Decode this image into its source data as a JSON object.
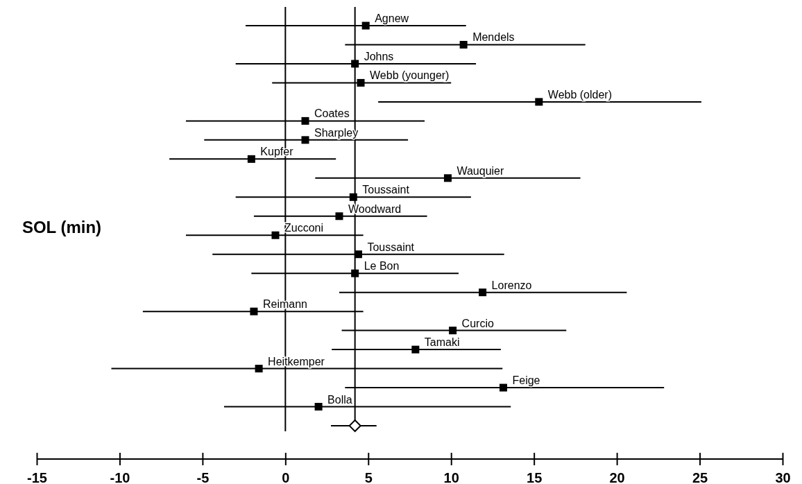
{
  "chart_data": {
    "type": "scatter",
    "orientation": "horizontal",
    "ylabel": "SOL (min)",
    "categories": [
      "Agnew",
      "Mendels",
      "Johns",
      "Webb (younger)",
      "Webb (older)",
      "Coates",
      "Sharpley",
      "Kupfer",
      "Wauquier",
      "Toussaint",
      "Woodward",
      "Zucconi",
      "Toussaint",
      "Le Bon",
      "Lorenzo",
      "Reimann",
      "Curcio",
      "Tamaki",
      "Heitkemper",
      "Feige",
      "Bolla",
      null
    ],
    "series": [
      {
        "type": "scatter",
        "marker": "square",
        "color": "#000000",
        "values": [
          4.85,
          10.75,
          4.2,
          4.55,
          15.3,
          1.2,
          1.2,
          -2.05,
          9.8,
          4.1,
          3.25,
          -0.6,
          4.4,
          4.2,
          11.9,
          -1.9,
          10.1,
          7.85,
          -1.6,
          13.15,
          2.0,
          null
        ],
        "errors": [
          [
            -2.4,
            10.9
          ],
          [
            3.6,
            18.1
          ],
          [
            -3.0,
            11.5
          ],
          [
            -0.8,
            10.0
          ],
          [
            5.6,
            25.1
          ],
          [
            -6.0,
            8.4
          ],
          [
            -4.9,
            7.4
          ],
          [
            -7.0,
            3.05
          ],
          [
            1.8,
            17.8
          ],
          [
            -3.0,
            11.2
          ],
          [
            -1.9,
            8.55
          ],
          [
            -6.0,
            4.7
          ],
          [
            -4.4,
            13.2
          ],
          [
            -2.05,
            10.45
          ],
          [
            3.25,
            20.6
          ],
          [
            -8.6,
            4.7
          ],
          [
            3.4,
            16.95
          ],
          [
            2.8,
            13.0
          ],
          [
            -10.5,
            13.1
          ],
          [
            3.6,
            22.85
          ],
          [
            -3.7,
            13.6
          ],
          null
        ]
      },
      {
        "type": "scatter",
        "marker": "diamond",
        "color": "#000000",
        "values": [
          null,
          null,
          null,
          null,
          null,
          null,
          null,
          null,
          null,
          null,
          null,
          null,
          null,
          null,
          null,
          null,
          null,
          null,
          null,
          null,
          null,
          4.2
        ],
        "errors": [
          null,
          null,
          null,
          null,
          null,
          null,
          null,
          null,
          null,
          null,
          null,
          null,
          null,
          null,
          null,
          null,
          null,
          null,
          null,
          null,
          null,
          [
            2.75,
            5.5
          ]
        ]
      }
    ],
    "xlim": [
      -15,
      30
    ],
    "xticks": [
      -15,
      -10,
      -5,
      0,
      5,
      10,
      15,
      20,
      25,
      30
    ],
    "ref_lines": [
      {
        "axis": "x",
        "value": 0
      },
      {
        "axis": "x",
        "value": 4.2
      }
    ]
  }
}
